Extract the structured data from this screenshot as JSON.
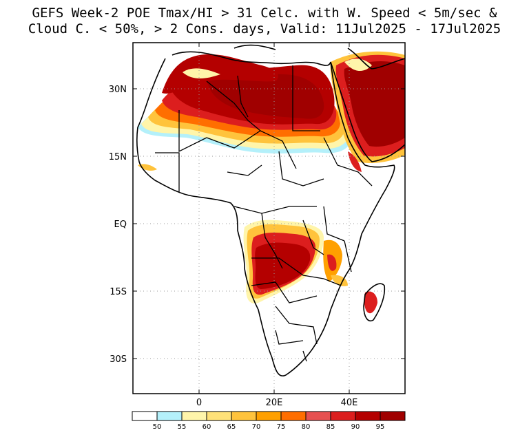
{
  "title": {
    "line1": "GEFS Week-2 POE Tmax/HI > 31 Celc. with W. Speed < 5m/sec &",
    "line2": "Cloud C. < 50%, > 2 Cons. days, Valid: 11Jul2025 - 17Jul2025"
  },
  "map": {
    "region": "Africa and Arabian Peninsula",
    "lat_ticks": [
      "30N",
      "15N",
      "EQ",
      "15S",
      "30S"
    ],
    "lon_ticks": [
      "0",
      "20E",
      "40E"
    ],
    "gridlines": "dotted"
  },
  "colorbar": {
    "colors": [
      "#ffffff",
      "#b4f0fa",
      "#fff5aa",
      "#ffe178",
      "#ffc33c",
      "#ffa000",
      "#ff6e00",
      "#e65050",
      "#dc1e1e",
      "#b40000",
      "#a00000"
    ],
    "labels": [
      "50",
      "55",
      "60",
      "65",
      "70",
      "75",
      "80",
      "85",
      "90",
      "95"
    ]
  }
}
